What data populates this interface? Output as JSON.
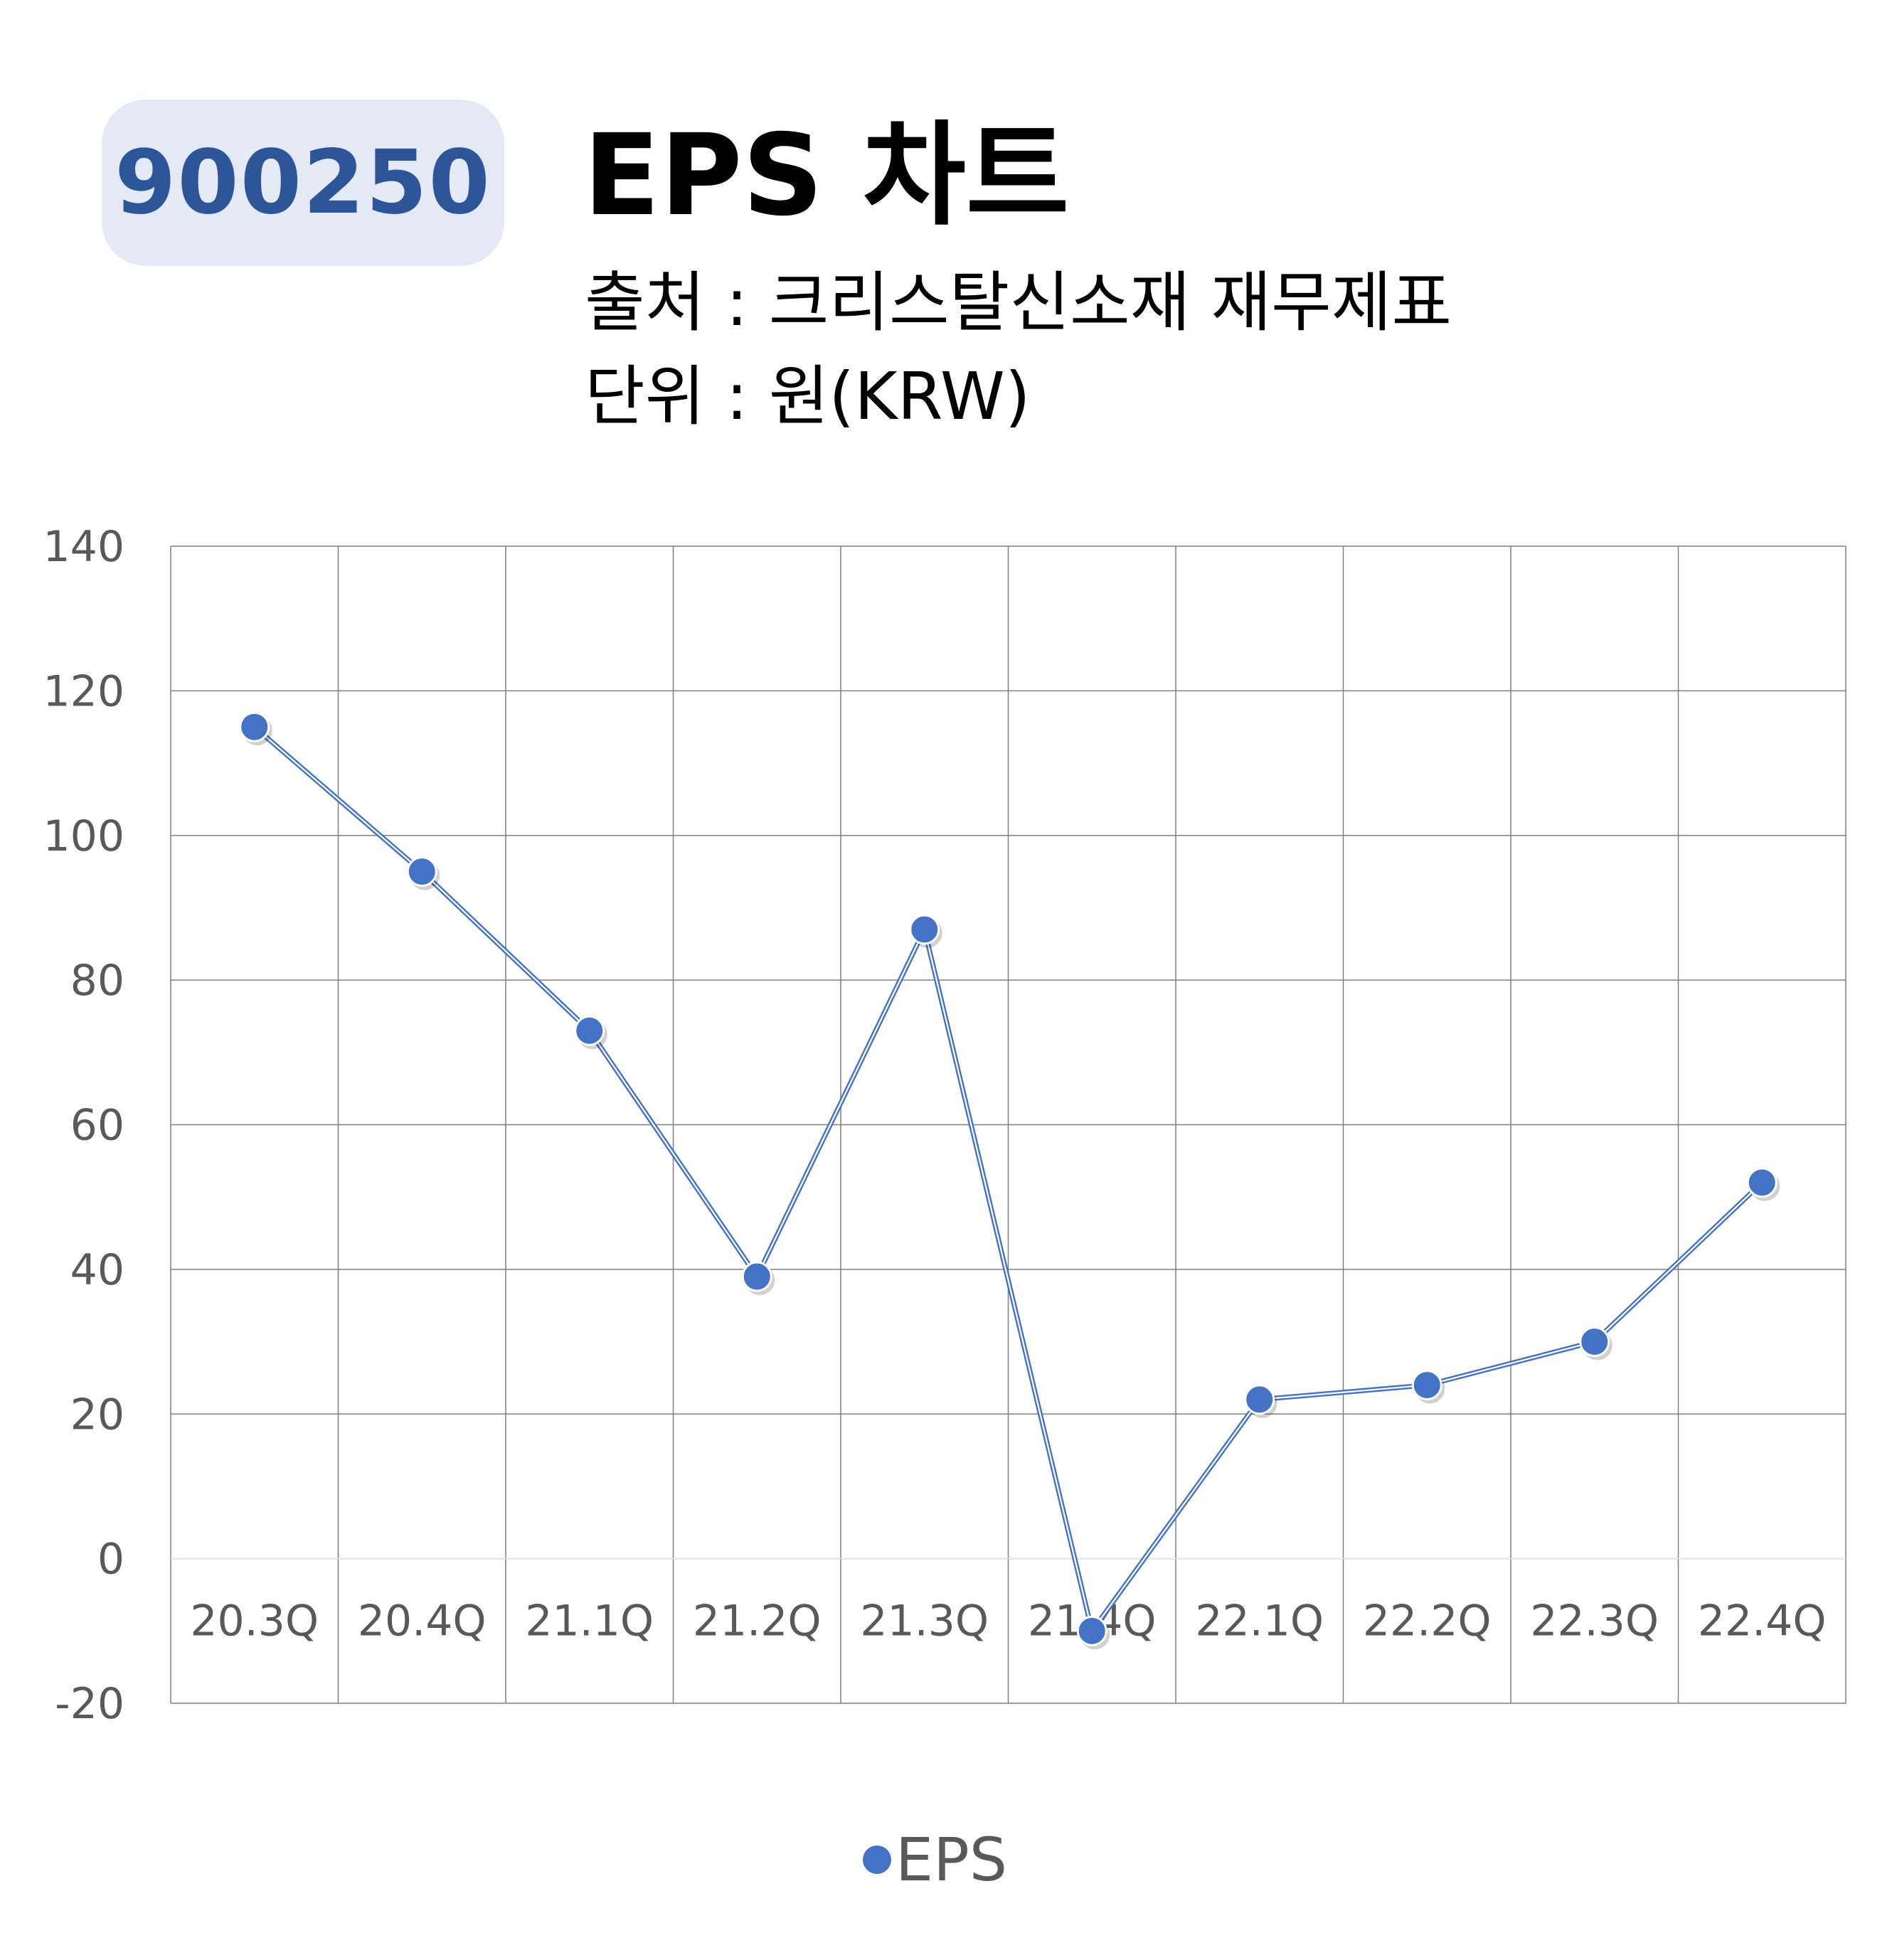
{
  "header": {
    "code": "900250",
    "title": "EPS 차트",
    "source": "출처 : 크리스탈신소재 재무제표",
    "unit": "단위 : 원(KRW)"
  },
  "colors": {
    "badge_bg": "#e3e9f5",
    "badge_text": "#2e5597",
    "series": "#4472c4",
    "grid": "#7f7f7f",
    "tick_text": "#595959"
  },
  "chart_data": {
    "type": "line",
    "categories": [
      "20.3Q",
      "20.4Q",
      "21.1Q",
      "21.2Q",
      "21.3Q",
      "21.4Q",
      "22.1Q",
      "22.2Q",
      "22.3Q",
      "22.4Q"
    ],
    "series": [
      {
        "name": "EPS",
        "values": [
          115,
          95,
          73,
          39,
          87,
          -10,
          22,
          24,
          30,
          52
        ]
      }
    ],
    "yticks": [
      "140",
      "120",
      "100",
      "80",
      "60",
      "40",
      "20",
      "0",
      "-20"
    ],
    "ylim": [
      -20,
      140
    ],
    "ystep": 20,
    "grid": true,
    "legend": "bottom"
  }
}
